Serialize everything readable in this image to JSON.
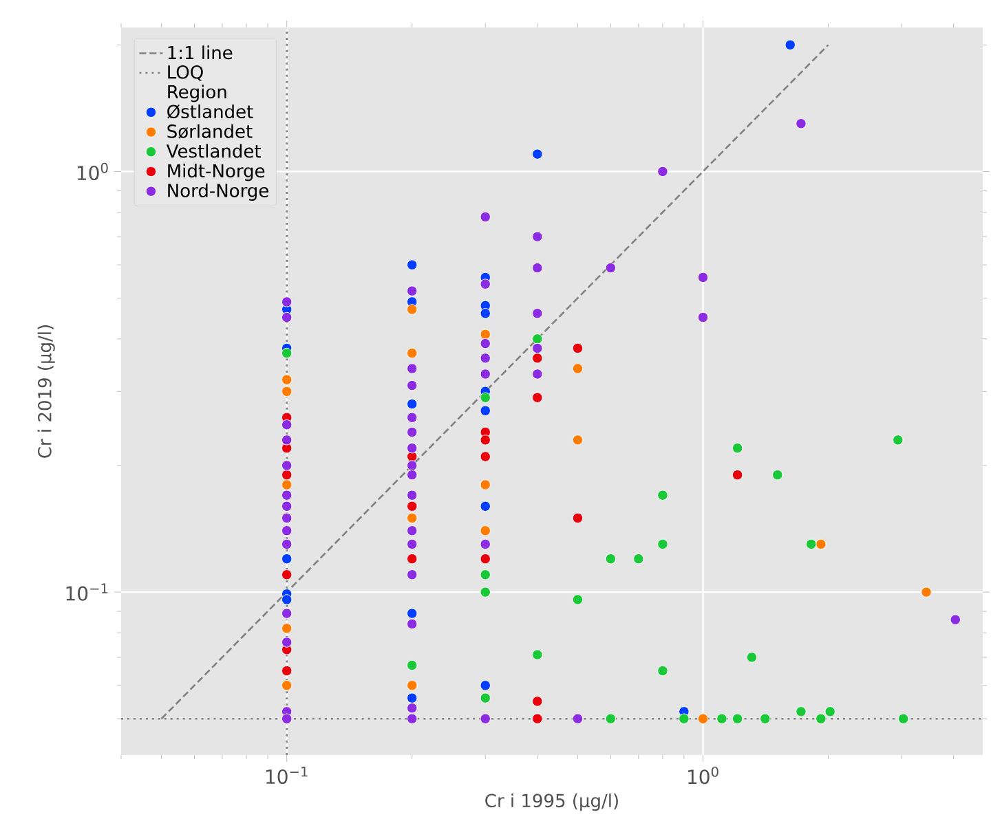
{
  "chart_data": {
    "type": "scatter",
    "xlabel": "Cr i 1995 (µg/l)",
    "ylabel": "Cr i 2019 (µg/l)",
    "legend_title": "Region",
    "log": "xy",
    "grid": true,
    "legend": "top left",
    "xlim": [
      0.04,
      4.7
    ],
    "ylim": [
      0.041,
      2.2
    ],
    "xticks": [
      {
        "value": 0.1,
        "label": "10$^{−1}$"
      },
      {
        "value": 1,
        "label": "10$^{0}$"
      }
    ],
    "yticks": [
      {
        "value": 0.1,
        "label": "10$^{−1}$"
      },
      {
        "value": 1,
        "label": "10$^{0}$"
      }
    ],
    "ref_lines": [
      {
        "axis": "y",
        "value": 0.05,
        "label": "LOQ",
        "color": "#808080",
        "line_style": "dotted"
      },
      {
        "axis": "x",
        "value": 0.1,
        "color": "#808080",
        "line_style": "dotted"
      }
    ],
    "series": [
      {
        "name": "1:1 line",
        "type": "line",
        "marker": "none",
        "color": "#808080",
        "line_style": "dashed",
        "x": [
          0.05,
          2
        ],
        "values": [
          0.05,
          2
        ]
      },
      {
        "name": "Østlandet",
        "marker": "circle",
        "color": "#023eff",
        "x": [
          0.1,
          0.1,
          0.1,
          0.1,
          0.1,
          0.2,
          0.2,
          0.2,
          0.2,
          0.2,
          0.3,
          0.3,
          0.3,
          0.3,
          0.3,
          0.3,
          0.3,
          0.4,
          1.62,
          0.9
        ],
        "values": [
          0.47,
          0.38,
          0.12,
          0.099,
          0.096,
          0.6,
          0.49,
          0.28,
          0.089,
          0.056,
          0.56,
          0.48,
          0.46,
          0.3,
          0.27,
          0.16,
          0.06,
          1.1,
          2.0,
          0.052
        ]
      },
      {
        "name": "Sørlandet",
        "marker": "circle",
        "color": "#ff7c00",
        "x": [
          0.1,
          0.1,
          0.1,
          0.1,
          0.1,
          0.2,
          0.2,
          0.2,
          0.2,
          0.3,
          0.3,
          0.3,
          0.5,
          0.5,
          1.92,
          3.44,
          1.0
        ],
        "values": [
          0.32,
          0.3,
          0.18,
          0.082,
          0.06,
          0.47,
          0.37,
          0.15,
          0.06,
          0.41,
          0.18,
          0.14,
          0.34,
          0.23,
          0.13,
          0.1,
          0.05
        ]
      },
      {
        "name": "Vestlandet",
        "marker": "circle",
        "color": "#1ac938",
        "x": [
          0.1,
          0.2,
          0.3,
          0.3,
          0.3,
          0.3,
          0.4,
          0.4,
          0.5,
          1.21,
          1.51,
          2.94,
          0.8,
          0.8,
          0.6,
          0.7,
          1.82,
          0.8,
          1.31,
          1.72,
          2.02,
          0.6,
          0.9,
          1.11,
          1.21,
          1.41,
          1.92,
          3.03
        ],
        "values": [
          0.37,
          0.067,
          0.29,
          0.11,
          0.1,
          0.056,
          0.4,
          0.071,
          0.096,
          0.22,
          0.19,
          0.23,
          0.17,
          0.13,
          0.12,
          0.12,
          0.13,
          0.065,
          0.07,
          0.052,
          0.052,
          0.05,
          0.05,
          0.05,
          0.05,
          0.05,
          0.05,
          0.05
        ]
      },
      {
        "name": "Midt-Norge",
        "marker": "circle",
        "color": "#e8000b",
        "x": [
          0.1,
          0.1,
          0.1,
          0.1,
          0.1,
          0.1,
          0.2,
          0.2,
          0.2,
          0.3,
          0.3,
          0.3,
          0.3,
          0.4,
          0.4,
          0.4,
          0.4,
          0.5,
          0.5,
          1.21
        ],
        "values": [
          0.26,
          0.22,
          0.19,
          0.11,
          0.073,
          0.065,
          0.21,
          0.16,
          0.12,
          0.24,
          0.23,
          0.21,
          0.12,
          0.36,
          0.29,
          0.055,
          0.05,
          0.38,
          0.15,
          0.19
        ]
      },
      {
        "name": "Nord-Norge",
        "marker": "circle",
        "color": "#8b2be2",
        "x": [
          0.1,
          0.1,
          0.1,
          0.1,
          0.1,
          0.1,
          0.1,
          0.1,
          0.1,
          0.1,
          0.1,
          0.1,
          0.1,
          0.1,
          0.2,
          0.2,
          0.2,
          0.2,
          0.2,
          0.2,
          0.2,
          0.2,
          0.2,
          0.2,
          0.2,
          0.2,
          0.2,
          0.2,
          0.2,
          0.3,
          0.3,
          0.3,
          0.3,
          0.3,
          0.3,
          0.3,
          0.4,
          0.4,
          0.4,
          0.4,
          0.4,
          0.5,
          0.8,
          0.6,
          1.0,
          1.0,
          1.72,
          4.04
        ],
        "values": [
          0.49,
          0.45,
          0.25,
          0.23,
          0.2,
          0.17,
          0.16,
          0.15,
          0.14,
          0.13,
          0.089,
          0.076,
          0.052,
          0.05,
          0.52,
          0.34,
          0.31,
          0.26,
          0.24,
          0.22,
          0.2,
          0.19,
          0.17,
          0.14,
          0.13,
          0.11,
          0.084,
          0.053,
          0.05,
          0.78,
          0.54,
          0.39,
          0.36,
          0.33,
          0.13,
          0.05,
          0.7,
          0.59,
          0.46,
          0.38,
          0.33,
          0.05,
          1.0,
          0.59,
          0.56,
          0.45,
          1.3,
          0.086
        ]
      }
    ]
  }
}
